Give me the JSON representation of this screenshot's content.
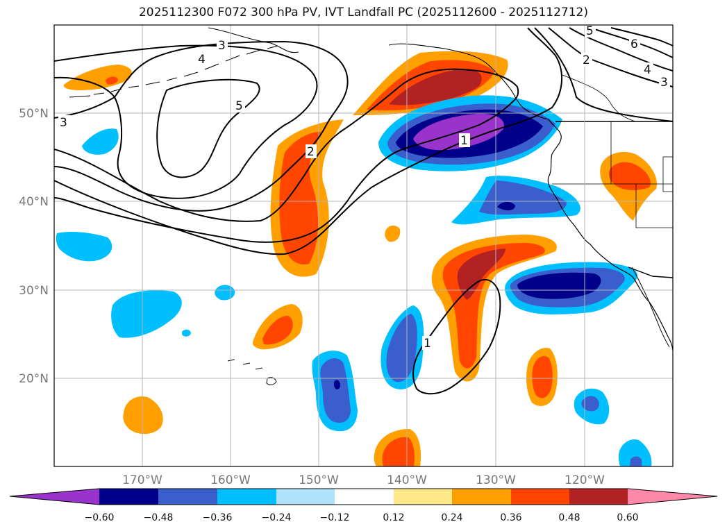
{
  "title": "2025112300 F072 300 hPa PV, IVT Landfall PC (2025112600 - 2025112712)",
  "axes": {
    "lat_labels": [
      "20°N",
      "30°N",
      "40°N",
      "50°N"
    ],
    "lon_labels": [
      "170°W",
      "160°W",
      "150°W",
      "140°W",
      "130°W",
      "120°W"
    ]
  },
  "colorbar": {
    "ticks": [
      "−0.60",
      "−0.48",
      "−0.36",
      "−0.24",
      "−0.12",
      "0.12",
      "0.24",
      "0.36",
      "0.48",
      "0.60"
    ],
    "colors": [
      "#9933cc",
      "#00008b",
      "#3a5fcd",
      "#00bfff",
      "#aee3fa",
      "#ffffff",
      "#ffe88a",
      "#ff9f00",
      "#ff4500",
      "#b22222",
      "#ff88aa"
    ]
  },
  "contour_labels": {
    "pv_3_west": "3",
    "pv_3_north": "3",
    "pv_4_north": "4",
    "pv_5_center": "5",
    "pv_2_trough": "2",
    "pv_1_trough": "1",
    "pv_1_south": "1",
    "pv_5_ne": "5",
    "pv_6_ne": "6",
    "pv_2_ne": "2",
    "pv_4_ne": "4",
    "pv_3_ne": "3"
  },
  "colors": {
    "purple": "#9933cc",
    "navy": "#00008b",
    "royal": "#3a5fcd",
    "sky": "#00bfff",
    "orange": "#ff9f00",
    "redorange": "#ff4500",
    "firebrick": "#b22222"
  }
}
